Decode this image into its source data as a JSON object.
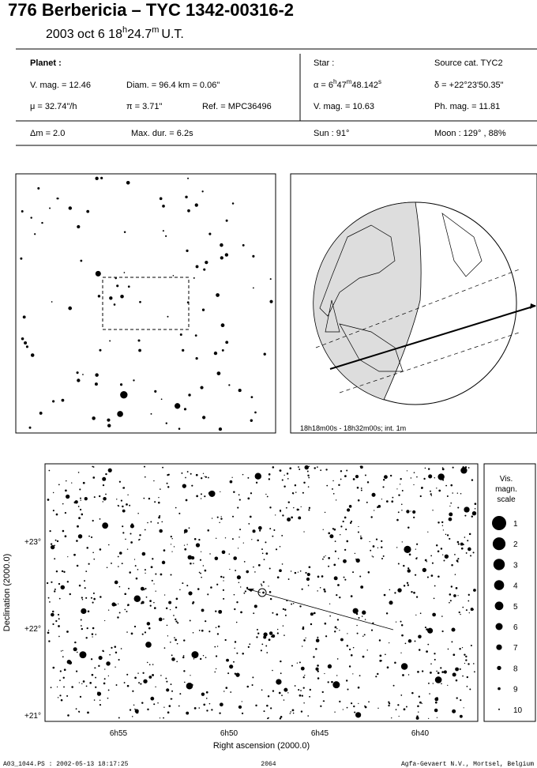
{
  "header": {
    "title": "776 Berbericia  –  TYC 1342-00316-2",
    "date": "2003 oct  6  18",
    "h": "h",
    "min": "24.7",
    "m": "m",
    "ut": "U.T."
  },
  "info": {
    "planet_label": "Planet :",
    "vmag": "V. mag. = 12.46",
    "diam": "Diam. = 96.4 km = 0.06\"",
    "mu": "μ =  32.74\"/h",
    "pi": "π =  3.71\"",
    "ref": "Ref. = MPC36496",
    "star_label": "Star :",
    "source": "Source cat.  TYC2",
    "alpha": [
      "α =  6",
      "h",
      "47",
      "m",
      "48.142",
      "s"
    ],
    "delta": "δ = +22°23'50.35\"",
    "star_vmag": "V. mag. = 10.63",
    "ph_mag": "Ph. mag. = 11.81",
    "dm": "Δm = 2.0",
    "maxdur": "Max. dur. = 6.2s",
    "sun": "Sun :  91°",
    "moon": "Moon : 129° , 88%"
  },
  "globe": {
    "caption": "18h18m00s - 18h32m00s; int.  1m"
  },
  "chart": {
    "xlabel": "Right ascension (2000.0)",
    "ylabel": "Declination (2000.0)",
    "xticks": [
      "6h55",
      "6h50",
      "6h45",
      "6h40"
    ],
    "yticks": [
      "+23°",
      "+22°",
      "+21°"
    ]
  },
  "scale": {
    "title": [
      "Vis.",
      "magn.",
      "scale"
    ],
    "magnitudes": [
      1,
      2,
      3,
      4,
      5,
      6,
      7,
      8,
      9,
      10
    ]
  },
  "footer": {
    "left": "A03_1044.PS : 2002-05-13 18:17:25",
    "center": "2064",
    "right": "Agfa-Gevaert N.V., Mortsel, Belgium"
  }
}
